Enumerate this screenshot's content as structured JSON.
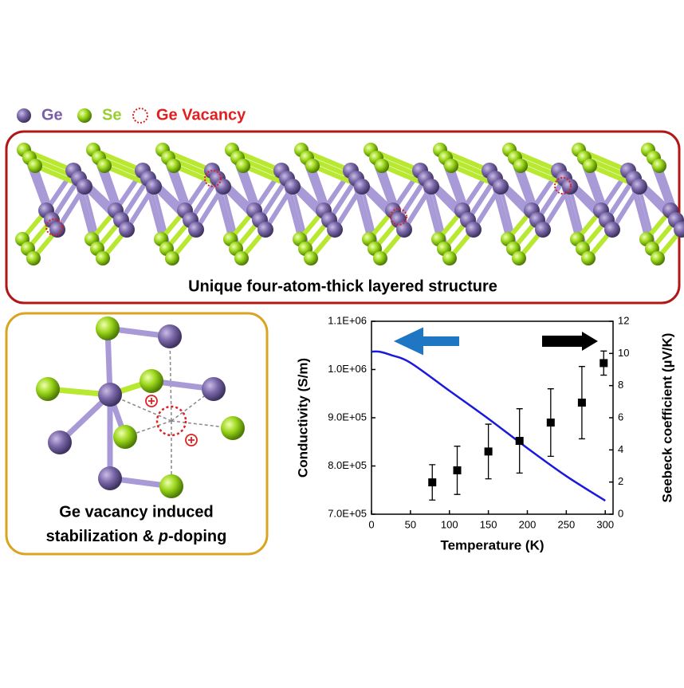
{
  "legend": {
    "ge": "Ge",
    "se": "Se",
    "vacancy": "Ge Vacancy"
  },
  "top_panel": {
    "caption": "Unique four-atom-thick layered structure"
  },
  "bottom_left": {
    "caption_line1": "Ge vacancy induced",
    "caption_line2": [
      "stabilization & ",
      "p",
      "-doping"
    ]
  },
  "chart_data": {
    "type": "line",
    "xlabel": "Temperature (K)",
    "ylabel": "Conductivity (S/m)",
    "y2label": "Seebeck coefficient (µV/K)",
    "xlim": [
      0,
      310
    ],
    "xticks": [
      0,
      50,
      100,
      150,
      200,
      250,
      300
    ],
    "ylim": [
      700000,
      1100000
    ],
    "yticks": [
      {
        "value": 700000,
        "label": "7.0E+05"
      },
      {
        "value": 800000,
        "label": "8.0E+05"
      },
      {
        "value": 900000,
        "label": "9.0E+05"
      },
      {
        "value": 1000000,
        "label": "1.0E+06"
      },
      {
        "value": 1100000,
        "label": "1.1E+06"
      }
    ],
    "y2lim": [
      0,
      12
    ],
    "y2ticks": [
      0,
      2,
      4,
      6,
      8,
      10,
      12
    ],
    "series": [
      {
        "color": "#1a1adc",
        "axis": "y",
        "x": [
          0,
          10,
          25,
          50,
          100,
          150,
          200,
          250,
          300
        ],
        "values": [
          1037000,
          1037000,
          1030000,
          1014000,
          956000,
          898000,
          837000,
          779000,
          728000
        ]
      },
      {
        "color": "#000000",
        "axis": "y2",
        "marker": "square",
        "x": [
          78,
          110,
          150,
          190,
          230,
          270,
          298
        ],
        "values": [
          1.98,
          2.73,
          3.9,
          4.56,
          5.7,
          6.94,
          9.4
        ],
        "errors": [
          1.1,
          1.5,
          1.7,
          2.0,
          2.1,
          2.25,
          0.75
        ]
      }
    ]
  }
}
